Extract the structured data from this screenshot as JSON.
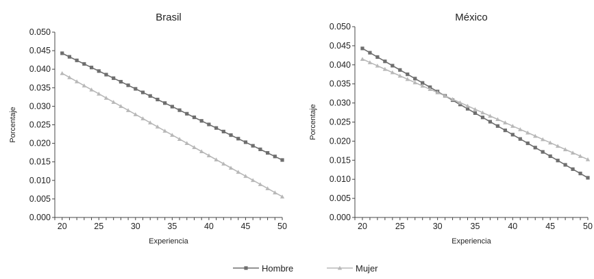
{
  "colors": {
    "hombre": "#6e6e6e",
    "mujer": "#b8b8b8",
    "axis": "#444444"
  },
  "legend": {
    "hombre": "Hombre",
    "mujer": "Mujer",
    "placement": "bottom-center"
  },
  "chart_data": [
    {
      "type": "line",
      "title": "Brasil",
      "xlabel": "Experiencia",
      "ylabel": "Porcentaje",
      "xlim": [
        19,
        50
      ],
      "ylim": [
        0.0,
        0.05
      ],
      "grid": false,
      "xticks": [
        "20",
        "25",
        "30",
        "35",
        "40",
        "45",
        "50"
      ],
      "yticks": [
        "0.000",
        "0.005",
        "0.010",
        "0.015",
        "0.020",
        "0.025",
        "0.030",
        "0.035",
        "0.040",
        "0.045",
        "0.050"
      ],
      "x": [
        20,
        50
      ],
      "series": [
        {
          "name": "Hombre",
          "marker": "square",
          "start": 0.0443,
          "end": 0.0155,
          "step": 1
        },
        {
          "name": "Mujer",
          "marker": "triangle",
          "start": 0.0389,
          "end": 0.0056,
          "step": 1
        }
      ]
    },
    {
      "type": "line",
      "title": "México",
      "xlabel": "Experiencia",
      "ylabel": "Porcentaje",
      "xlim": [
        19,
        50
      ],
      "ylim": [
        0.0,
        0.05
      ],
      "grid": false,
      "xticks": [
        "20",
        "25",
        "30",
        "35",
        "40",
        "45",
        "50"
      ],
      "yticks": [
        "0.000",
        "0.005",
        "0.010",
        "0.015",
        "0.020",
        "0.025",
        "0.030",
        "0.035",
        "0.040",
        "0.045",
        "0.050"
      ],
      "x": [
        20,
        50
      ],
      "series": [
        {
          "name": "Hombre",
          "marker": "square",
          "start": 0.0443,
          "end": 0.0104,
          "step": 1
        },
        {
          "name": "Mujer",
          "marker": "triangle",
          "start": 0.0415,
          "end": 0.0152,
          "step": 1
        }
      ]
    }
  ]
}
